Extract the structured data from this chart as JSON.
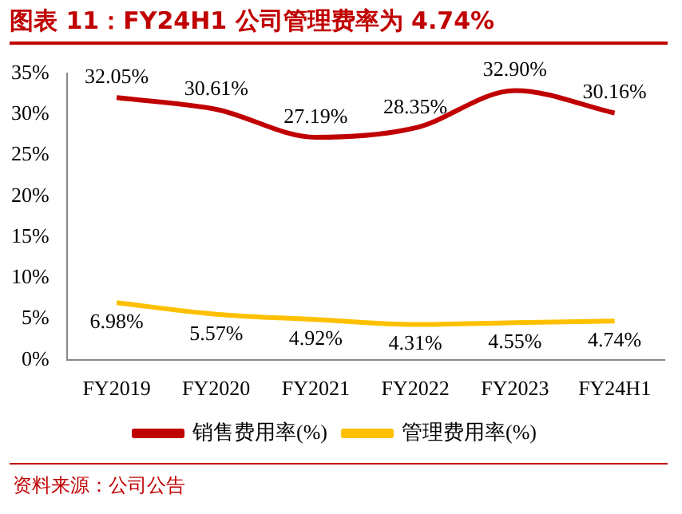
{
  "chart_data": {
    "type": "line",
    "title": "图表 11：FY24H1 公司管理费率为 4.74%",
    "categories": [
      "FY2019",
      "FY2020",
      "FY2021",
      "FY2022",
      "FY2023",
      "FY24H1"
    ],
    "series": [
      {
        "name": "销售费用率(%)",
        "color": "#c00000",
        "values": [
          32.05,
          30.61,
          27.19,
          28.35,
          32.9,
          30.16
        ],
        "value_labels": [
          "32.05%",
          "30.61%",
          "27.19%",
          "28.35%",
          "32.90%",
          "30.16%"
        ]
      },
      {
        "name": "管理费用率(%)",
        "color": "#ffc000",
        "values": [
          6.98,
          5.57,
          4.92,
          4.31,
          4.55,
          4.74
        ],
        "value_labels": [
          "6.98%",
          "5.57%",
          "4.92%",
          "4.31%",
          "4.55%",
          "4.74%"
        ]
      }
    ],
    "ylim": [
      0,
      35
    ],
    "yticks": [
      {
        "value": 0,
        "label": "0%"
      },
      {
        "value": 5,
        "label": "5%"
      },
      {
        "value": 10,
        "label": "10%"
      },
      {
        "value": 15,
        "label": "15%"
      },
      {
        "value": 20,
        "label": "20%"
      },
      {
        "value": 25,
        "label": "25%"
      },
      {
        "value": 30,
        "label": "30%"
      },
      {
        "value": 35,
        "label": "35%"
      }
    ],
    "grid": false,
    "legend": "bottom",
    "marker": "none",
    "line_style": "solid",
    "annotations": [
      "资料来源：公司公告"
    ]
  }
}
